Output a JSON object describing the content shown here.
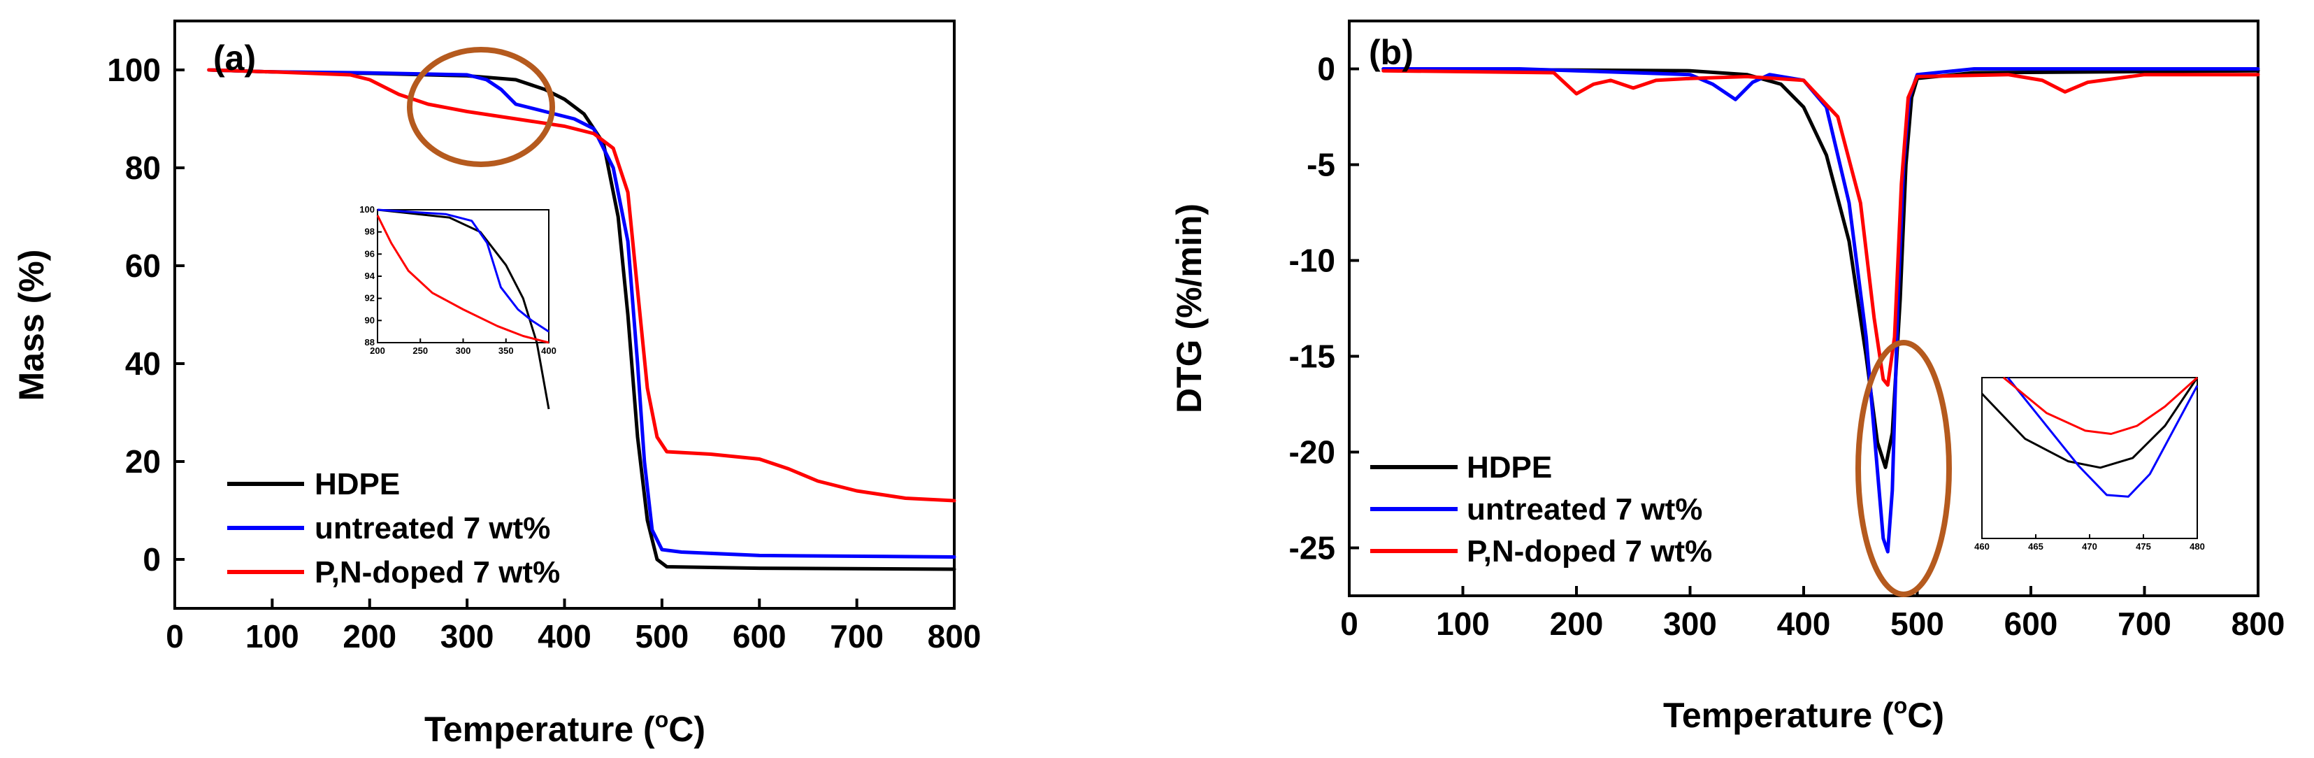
{
  "figure": {
    "colors": {
      "HDPE": "#000000",
      "untreated": "#0000ff",
      "pn_doped": "#ff0000",
      "highlight": "#b55a1e"
    }
  },
  "chart_data": [
    {
      "type": "line",
      "panel_label": "(a)",
      "xlabel_pre": "Temperature (",
      "xlabel_sup": "o",
      "xlabel_post": "C)",
      "ylabel": "Mass (%)",
      "xlim": [
        0,
        800
      ],
      "ylim": [
        -10,
        110
      ],
      "xticks": [
        0,
        100,
        200,
        300,
        400,
        500,
        600,
        700,
        800
      ],
      "yticks": [
        0,
        20,
        40,
        60,
        80,
        100
      ],
      "legend_position": "lower-left",
      "series": [
        {
          "name": "HDPE",
          "color": "#000000",
          "points": [
            [
              35,
              100
            ],
            [
              100,
              99.6
            ],
            [
              200,
              99.3
            ],
            [
              300,
              98.8
            ],
            [
              350,
              98
            ],
            [
              380,
              96
            ],
            [
              400,
              94
            ],
            [
              420,
              91
            ],
            [
              440,
              85
            ],
            [
              455,
              70
            ],
            [
              465,
              50
            ],
            [
              475,
              25
            ],
            [
              485,
              8
            ],
            [
              495,
              0
            ],
            [
              505,
              -1.5
            ],
            [
              600,
              -1.8
            ],
            [
              800,
              -2
            ]
          ]
        },
        {
          "name": "untreated 7 wt%",
          "color": "#0000ff",
          "points": [
            [
              35,
              100
            ],
            [
              100,
              99.6
            ],
            [
              200,
              99.4
            ],
            [
              300,
              99
            ],
            [
              320,
              98
            ],
            [
              335,
              96
            ],
            [
              350,
              93
            ],
            [
              380,
              91.5
            ],
            [
              410,
              90
            ],
            [
              430,
              88
            ],
            [
              450,
              80
            ],
            [
              465,
              65
            ],
            [
              475,
              40
            ],
            [
              482,
              20
            ],
            [
              490,
              6
            ],
            [
              500,
              2
            ],
            [
              520,
              1.5
            ],
            [
              600,
              0.8
            ],
            [
              800,
              0.5
            ]
          ]
        },
        {
          "name": "P,N-doped 7 wt%",
          "color": "#ff0000",
          "points": [
            [
              35,
              100
            ],
            [
              100,
              99.6
            ],
            [
              180,
              99
            ],
            [
              200,
              98
            ],
            [
              230,
              95
            ],
            [
              260,
              93
            ],
            [
              300,
              91.5
            ],
            [
              350,
              90
            ],
            [
              400,
              88.5
            ],
            [
              430,
              87
            ],
            [
              450,
              84
            ],
            [
              465,
              75
            ],
            [
              475,
              55
            ],
            [
              485,
              35
            ],
            [
              495,
              25
            ],
            [
              505,
              22
            ],
            [
              550,
              21.5
            ],
            [
              600,
              20.5
            ],
            [
              630,
              18.5
            ],
            [
              660,
              16
            ],
            [
              700,
              14
            ],
            [
              750,
              12.5
            ],
            [
              800,
              12
            ]
          ]
        }
      ],
      "inset": {
        "xticks": [
          "200",
          "250",
          "300",
          "350",
          "400"
        ],
        "yticks": [
          "88",
          "90",
          "92",
          "94",
          "96",
          "98",
          "100"
        ],
        "series": [
          {
            "name": "HDPE",
            "color": "#000000",
            "points": [
              [
                0,
                100
              ],
              [
                0.42,
                99.3
              ],
              [
                0.6,
                98
              ],
              [
                0.75,
                95
              ],
              [
                0.85,
                92
              ],
              [
                0.93,
                88
              ],
              [
                1,
                82
              ]
            ]
          },
          {
            "name": "untreated 7 wt%",
            "color": "#0000ff",
            "points": [
              [
                0,
                100
              ],
              [
                0.4,
                99.6
              ],
              [
                0.55,
                99
              ],
              [
                0.64,
                97
              ],
              [
                0.72,
                93
              ],
              [
                0.82,
                91
              ],
              [
                0.9,
                90
              ],
              [
                1,
                89
              ]
            ]
          },
          {
            "name": "P,N-doped 7 wt%",
            "color": "#ff0000",
            "points": [
              [
                0,
                99.5
              ],
              [
                0.08,
                97
              ],
              [
                0.18,
                94.5
              ],
              [
                0.32,
                92.5
              ],
              [
                0.5,
                91
              ],
              [
                0.7,
                89.5
              ],
              [
                0.85,
                88.6
              ],
              [
                1,
                88
              ]
            ]
          }
        ]
      }
    },
    {
      "type": "line",
      "panel_label": "(b)",
      "xlabel_pre": "Temperature (",
      "xlabel_sup": "o",
      "xlabel_post": "C)",
      "ylabel": "DTG (%/min)",
      "xlim": [
        0,
        800
      ],
      "ylim": [
        -27.5,
        2.5
      ],
      "xticks": [
        0,
        100,
        200,
        300,
        400,
        500,
        600,
        700,
        800
      ],
      "yticks": [
        0,
        -5,
        -10,
        -15,
        -20,
        -25
      ],
      "legend_position": "lower-left",
      "series": [
        {
          "name": "HDPE",
          "color": "#000000",
          "points": [
            [
              30,
              0
            ],
            [
              300,
              -0.1
            ],
            [
              350,
              -0.3
            ],
            [
              380,
              -0.8
            ],
            [
              400,
              -2
            ],
            [
              420,
              -4.5
            ],
            [
              440,
              -9
            ],
            [
              455,
              -15
            ],
            [
              465,
              -19.5
            ],
            [
              472,
              -20.8
            ],
            [
              478,
              -19
            ],
            [
              485,
              -12
            ],
            [
              490,
              -5
            ],
            [
              495,
              -1.5
            ],
            [
              500,
              -0.5
            ],
            [
              550,
              -0.2
            ],
            [
              800,
              -0.1
            ]
          ]
        },
        {
          "name": "untreated 7 wt%",
          "color": "#0000ff",
          "points": [
            [
              30,
              0
            ],
            [
              150,
              0
            ],
            [
              200,
              -0.1
            ],
            [
              300,
              -0.3
            ],
            [
              320,
              -0.8
            ],
            [
              340,
              -1.6
            ],
            [
              355,
              -0.7
            ],
            [
              370,
              -0.3
            ],
            [
              400,
              -0.6
            ],
            [
              420,
              -2
            ],
            [
              440,
              -7
            ],
            [
              455,
              -14
            ],
            [
              465,
              -21
            ],
            [
              470,
              -24.5
            ],
            [
              474,
              -25.2
            ],
            [
              478,
              -22
            ],
            [
              483,
              -12
            ],
            [
              488,
              -5
            ],
            [
              493,
              -1.5
            ],
            [
              500,
              -0.3
            ],
            [
              550,
              0
            ],
            [
              800,
              0
            ]
          ]
        },
        {
          "name": "P,N-doped 7 wt%",
          "color": "#ff0000",
          "points": [
            [
              30,
              -0.1
            ],
            [
              180,
              -0.2
            ],
            [
              200,
              -1.3
            ],
            [
              215,
              -0.8
            ],
            [
              230,
              -0.6
            ],
            [
              250,
              -1
            ],
            [
              270,
              -0.6
            ],
            [
              300,
              -0.5
            ],
            [
              350,
              -0.4
            ],
            [
              400,
              -0.6
            ],
            [
              430,
              -2.5
            ],
            [
              450,
              -7
            ],
            [
              462,
              -13
            ],
            [
              470,
              -16.2
            ],
            [
              474,
              -16.5
            ],
            [
              480,
              -14
            ],
            [
              486,
              -6
            ],
            [
              492,
              -1.5
            ],
            [
              500,
              -0.4
            ],
            [
              580,
              -0.3
            ],
            [
              610,
              -0.6
            ],
            [
              630,
              -1.2
            ],
            [
              650,
              -0.7
            ],
            [
              700,
              -0.3
            ],
            [
              800,
              -0.3
            ]
          ]
        }
      ],
      "inset": {
        "xticks": [
          "460",
          "465",
          "470",
          "475",
          "480"
        ],
        "series": [
          {
            "name": "HDPE",
            "color": "#000000",
            "points": [
              [
                0,
                0.1
              ],
              [
                0.2,
                0.38
              ],
              [
                0.4,
                0.52
              ],
              [
                0.55,
                0.56
              ],
              [
                0.7,
                0.5
              ],
              [
                0.85,
                0.3
              ],
              [
                1,
                0.0
              ]
            ]
          },
          {
            "name": "untreated 7 wt%",
            "color": "#0000ff",
            "points": [
              [
                0.12,
                0.0
              ],
              [
                0.3,
                0.3
              ],
              [
                0.45,
                0.55
              ],
              [
                0.58,
                0.73
              ],
              [
                0.68,
                0.74
              ],
              [
                0.78,
                0.6
              ],
              [
                0.9,
                0.3
              ],
              [
                1,
                0.05
              ]
            ]
          },
          {
            "name": "P,N-doped 7 wt%",
            "color": "#ff0000",
            "points": [
              [
                0.1,
                0.0
              ],
              [
                0.3,
                0.22
              ],
              [
                0.48,
                0.33
              ],
              [
                0.6,
                0.35
              ],
              [
                0.72,
                0.3
              ],
              [
                0.85,
                0.18
              ],
              [
                1,
                0.0
              ]
            ]
          }
        ]
      }
    }
  ]
}
